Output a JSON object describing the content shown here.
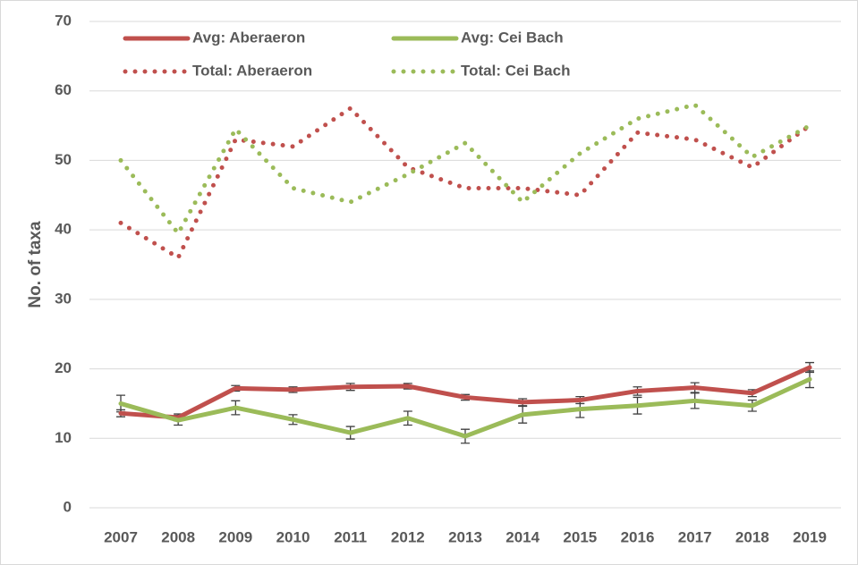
{
  "chart_data": {
    "type": "line",
    "y_label": "No. of taxa",
    "categories": [
      "2007",
      "2008",
      "2009",
      "2010",
      "2011",
      "2012",
      "2013",
      "2014",
      "2015",
      "2016",
      "2017",
      "2018",
      "2019"
    ],
    "ylim": [
      0,
      70
    ],
    "yticks": [
      0,
      10,
      20,
      30,
      40,
      50,
      60,
      70
    ],
    "grid": true,
    "series": [
      {
        "name": "Avg: Aberaeron",
        "color": "#c0504d",
        "style": "solid",
        "values": [
          13.6,
          13,
          17.2,
          17,
          17.4,
          17.5,
          15.9,
          15.2,
          15.5,
          16.8,
          17.3,
          16.5,
          20.2
        ],
        "errors": [
          0.5,
          0.5,
          0.4,
          0.4,
          0.5,
          0.4,
          0.4,
          0.5,
          0.5,
          0.6,
          0.7,
          0.5,
          0.7
        ]
      },
      {
        "name": "Avg: Cei Bach",
        "color": "#9bbb59",
        "style": "solid",
        "values": [
          15,
          12.6,
          14.4,
          12.7,
          10.8,
          12.9,
          10.3,
          13.4,
          14.2,
          14.7,
          15.4,
          14.7,
          18.5
        ],
        "errors": [
          1.2,
          0.7,
          1,
          0.7,
          0.9,
          1,
          1,
          1.2,
          1.2,
          1.2,
          1.1,
          0.8,
          1.2
        ]
      },
      {
        "name": "Total: Aberaeron",
        "color": "#c0504d",
        "style": "dotted",
        "values": [
          41,
          36,
          53,
          52,
          57.5,
          49,
          46,
          46,
          45,
          54,
          53,
          49,
          55
        ]
      },
      {
        "name": "Total: Cei Bach",
        "color": "#9bbb59",
        "style": "dotted",
        "values": [
          50,
          39.5,
          54.5,
          46,
          44,
          48,
          52.5,
          44,
          51,
          56,
          58,
          50.5,
          55
        ]
      }
    ]
  }
}
